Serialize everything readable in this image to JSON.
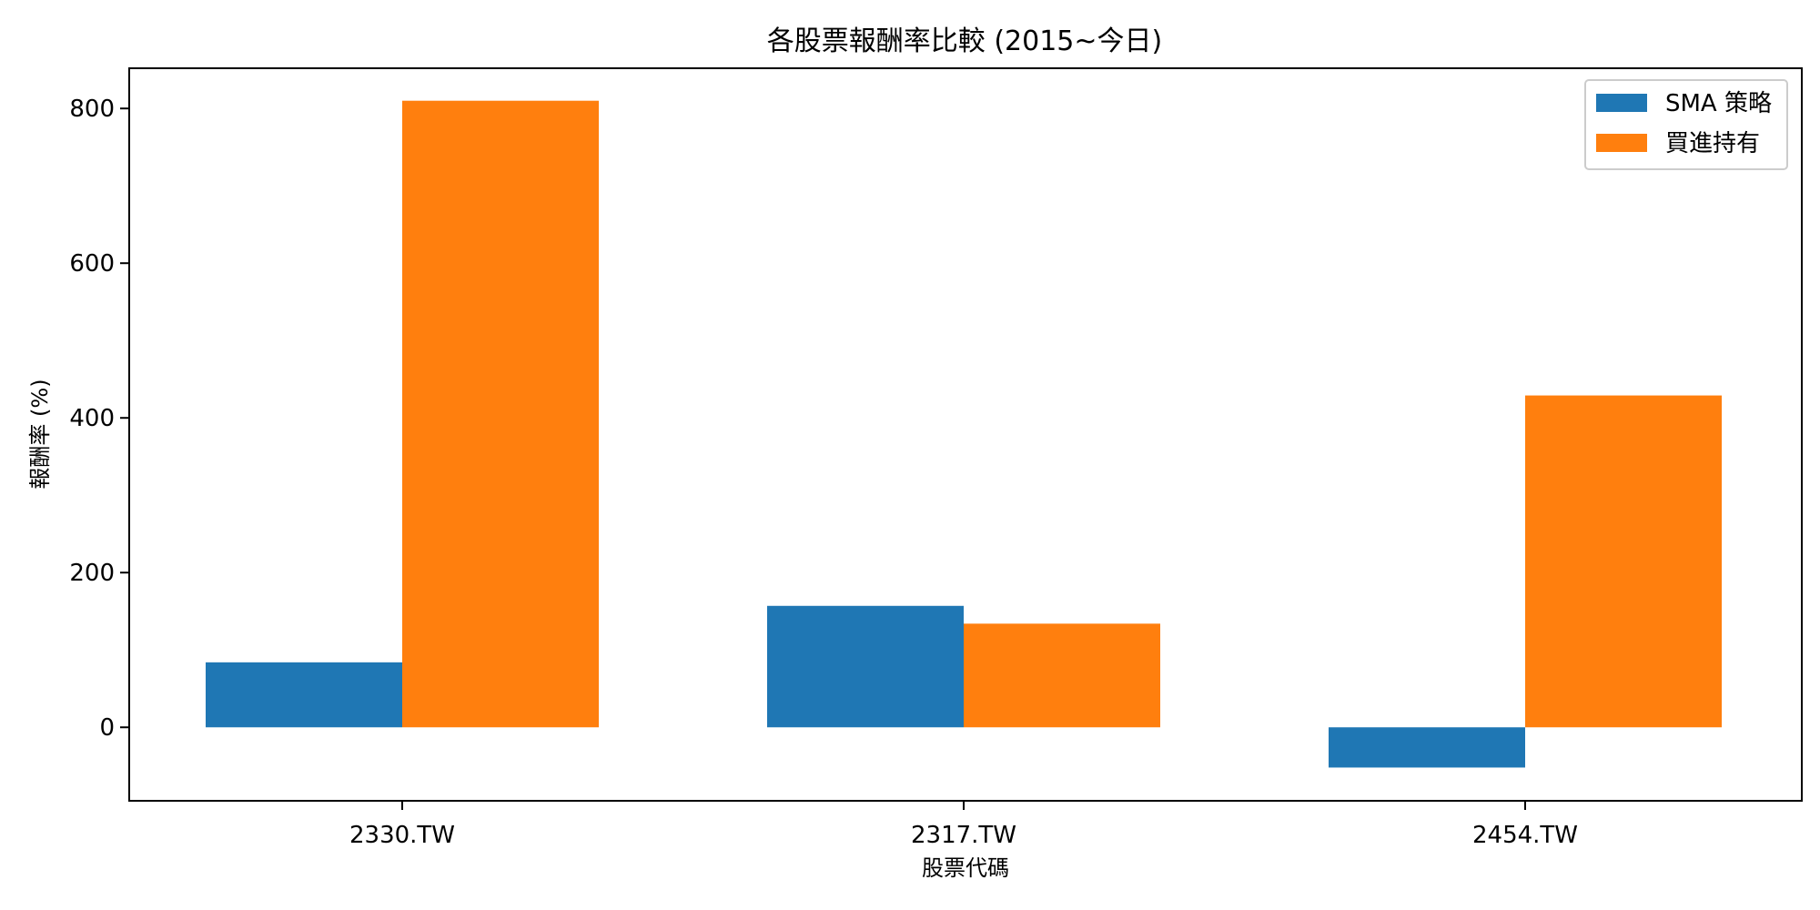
{
  "chart_data": {
    "type": "bar",
    "title": "各股票報酬率比較 (2015~今日)",
    "xlabel": "股票代碼",
    "ylabel": "報酬率 (%)",
    "categories": [
      "2330.TW",
      "2317.TW",
      "2454.TW"
    ],
    "series": [
      {
        "name": "SMA 策略",
        "color": "#1f77b4",
        "values": [
          84,
          157,
          -52
        ]
      },
      {
        "name": "買進持有",
        "color": "#ff7f0e",
        "values": [
          810,
          134,
          429
        ]
      }
    ],
    "ylim": [
      -95,
      852
    ],
    "yticks": [
      0,
      200,
      400,
      600,
      800
    ],
    "grid": false,
    "legend_position": "top-right"
  }
}
